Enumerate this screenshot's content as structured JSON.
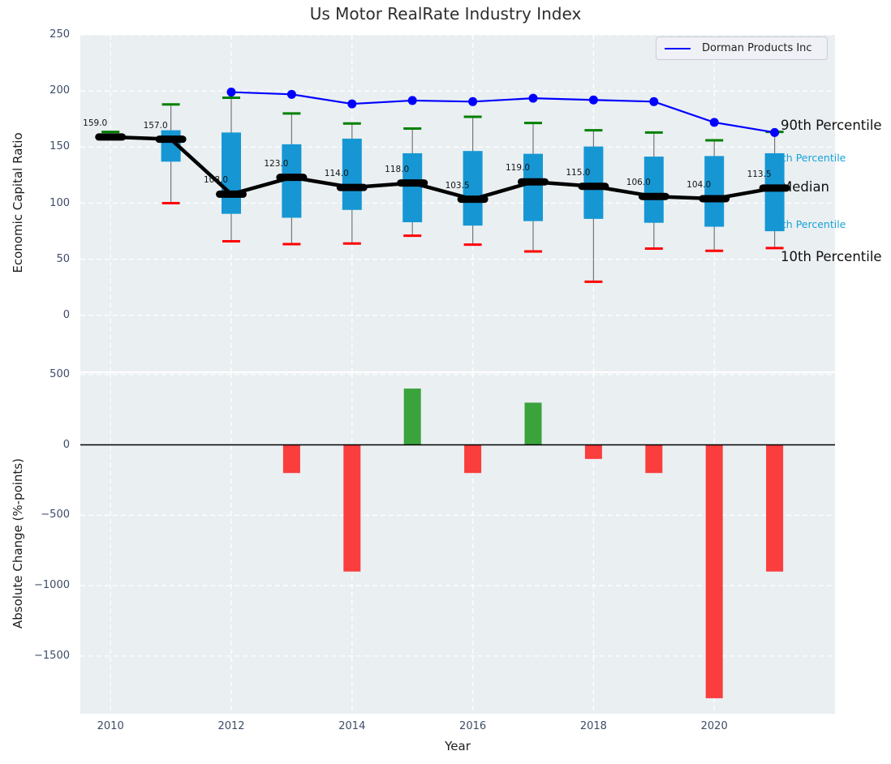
{
  "title": "Us Motor RealRate Industry Index",
  "legend": {
    "series_label": "Dorman Products Inc"
  },
  "top_axis": {
    "ylabel": "Economic Capital Ratio",
    "ytick_labels": [
      "250",
      "200",
      "150",
      "100",
      "50",
      "0"
    ],
    "ytick_values": [
      250,
      200,
      150,
      100,
      50,
      0
    ],
    "ylim": [
      -50,
      250
    ]
  },
  "bottom_axis": {
    "ylabel": "Absolute Change (%-points)",
    "ytick_labels": [
      "500",
      "0",
      "−500",
      "−1000",
      "−1500"
    ],
    "ytick_values": [
      500,
      0,
      -500,
      -1000,
      -1500
    ],
    "ylim": [
      -1910,
      510
    ]
  },
  "x_axis": {
    "label": "Year",
    "tick_labels": [
      "2010",
      "2012",
      "2014",
      "2016",
      "2018",
      "2020"
    ],
    "tick_values": [
      2010,
      2012,
      2014,
      2016,
      2018,
      2020
    ],
    "xlim": [
      2009.5,
      2022
    ]
  },
  "percentile_labels": {
    "p90": "90th Percentile",
    "p75": "75th Percentile",
    "median": "Median",
    "p25": "25th Percentile",
    "p10": "10th Percentile"
  },
  "colors": {
    "axes_bg": "#eaeff2",
    "grid": "#ffffff",
    "box_fill": "#1697d4",
    "whisker": "#777777",
    "cap_top": "#008000",
    "cap_bottom": "#ff0000",
    "median": "#000000",
    "dorman_line": "#0000ff",
    "bar_positive": "#3aa33c",
    "bar_negative": "#fa3d3d",
    "zero_line": "#000000",
    "tick_label": "#3d4c66",
    "percentile_cyan": "#17a3d6",
    "annotation_black": "#111111"
  },
  "chart_data": [
    {
      "type": "box-percentile-with-line",
      "title": "Us Motor RealRate Industry Index",
      "ylabel": "Economic Capital Ratio",
      "ylim": [
        -50,
        250
      ],
      "grid": true,
      "legend_position": "upper right",
      "years": [
        2010,
        2011,
        2012,
        2013,
        2014,
        2015,
        2016,
        2017,
        2018,
        2019,
        2020,
        2021
      ],
      "p10": [
        157,
        100,
        66,
        63.5,
        64,
        71,
        63,
        57,
        30,
        59.5,
        57.5,
        60
      ],
      "p25": [
        157.5,
        137,
        90.5,
        87,
        94,
        83,
        80,
        84,
        86,
        82.5,
        79,
        75
      ],
      "median": [
        159.0,
        157.0,
        108.0,
        123.0,
        114.0,
        118.0,
        103.5,
        119.0,
        115.0,
        106.0,
        104.0,
        113.5
      ],
      "p75": [
        160.5,
        165,
        163,
        152.5,
        157.5,
        144.5,
        146.5,
        144,
        150.5,
        141.5,
        142,
        144.5
      ],
      "p90": [
        163.5,
        188,
        194,
        180,
        171,
        166.5,
        177,
        171.5,
        165,
        163,
        156,
        163.5
      ],
      "median_labels": [
        "159.0",
        "157.0",
        "108.0",
        "123.0",
        "114.0",
        "118.0",
        "103.5",
        "119.0",
        "115.0",
        "106.0",
        "104.0",
        "113.5"
      ],
      "series": [
        {
          "name": "Dorman Products Inc",
          "x": [
            2012,
            2013,
            2014,
            2015,
            2016,
            2017,
            2018,
            2019,
            2020,
            2021
          ],
          "values": [
            199,
            197,
            188.5,
            191.5,
            190.5,
            193.5,
            192,
            190.5,
            172,
            163
          ]
        }
      ]
    },
    {
      "type": "bar",
      "ylabel": "Absolute Change (%-points)",
      "xlabel": "Year",
      "ylim": [
        -1910,
        510
      ],
      "grid": true,
      "categories": [
        2010,
        2011,
        2012,
        2013,
        2014,
        2015,
        2016,
        2017,
        2018,
        2019,
        2020,
        2021
      ],
      "values": [
        null,
        null,
        null,
        -200,
        -900,
        400,
        -200,
        300,
        -100,
        -200,
        -1800,
        -900
      ]
    }
  ]
}
